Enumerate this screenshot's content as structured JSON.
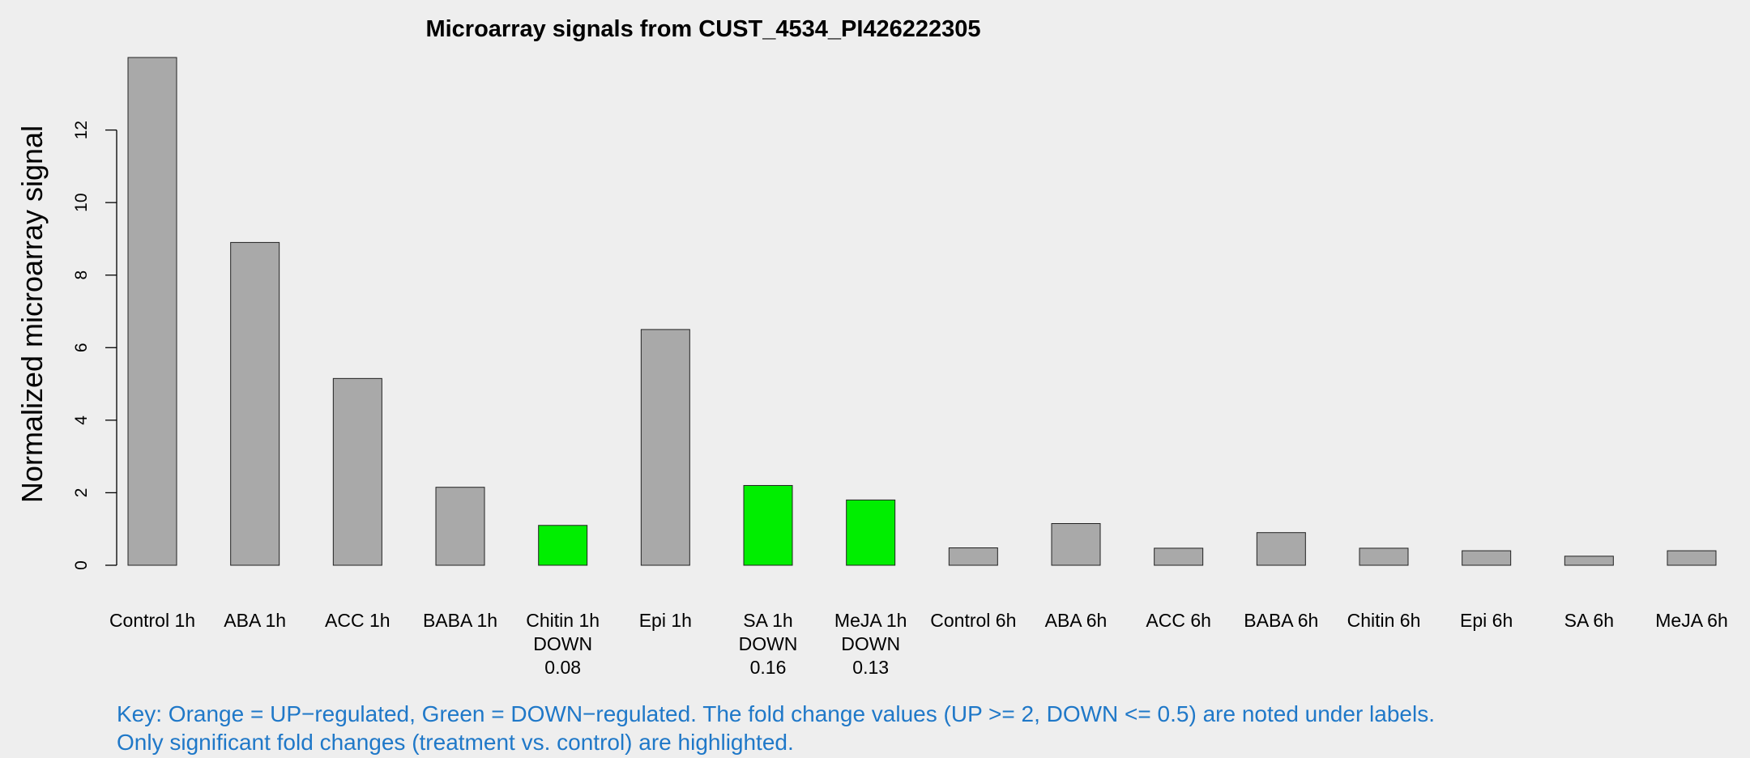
{
  "chart_data": {
    "type": "bar",
    "title": "Microarray signals from CUST_4534_PI426222305",
    "ylabel": "Normalized microarray signal",
    "xlabel": "",
    "ylim": [
      0,
      14
    ],
    "yticks": [
      0,
      2,
      4,
      6,
      8,
      10,
      12
    ],
    "grid": false,
    "categories": [
      "Control 1h",
      "ABA 1h",
      "ACC 1h",
      "BABA 1h",
      "Chitin 1h",
      "Epi 1h",
      "SA 1h",
      "MeJA 1h",
      "Control 6h",
      "ABA 6h",
      "ACC 6h",
      "BABA 6h",
      "Chitin 6h",
      "Epi 6h",
      "SA 6h",
      "MeJA 6h"
    ],
    "values": [
      14.0,
      8.9,
      5.15,
      2.15,
      1.1,
      6.5,
      2.2,
      1.8,
      0.48,
      1.15,
      0.47,
      0.9,
      0.47,
      0.4,
      0.25,
      0.4
    ],
    "regulation": [
      "",
      "",
      "",
      "",
      "DOWN",
      "",
      "DOWN",
      "DOWN",
      "",
      "",
      "",
      "",
      "",
      "",
      "",
      ""
    ],
    "fold_change": [
      "",
      "",
      "",
      "",
      "0.08",
      "",
      "0.16",
      "0.13",
      "",
      "",
      "",
      "",
      "",
      "",
      "",
      ""
    ],
    "bar_colors": [
      "#a9a9a9",
      "#a9a9a9",
      "#a9a9a9",
      "#a9a9a9",
      "#00ee00",
      "#a9a9a9",
      "#00ee00",
      "#00ee00",
      "#a9a9a9",
      "#a9a9a9",
      "#a9a9a9",
      "#a9a9a9",
      "#a9a9a9",
      "#a9a9a9",
      "#a9a9a9",
      "#a9a9a9"
    ]
  },
  "key": {
    "line1": "Key: Orange = UP−regulated, Green = DOWN−regulated. The fold change values (UP >= 2, DOWN <= 0.5) are noted under labels.",
    "line2": "Only significant fold changes (treatment vs. control) are highlighted."
  },
  "colors": {
    "background": "#eeeeee",
    "key_text": "#1f78c8",
    "up": "orange",
    "down": "#00ee00",
    "neutral": "#a9a9a9"
  }
}
